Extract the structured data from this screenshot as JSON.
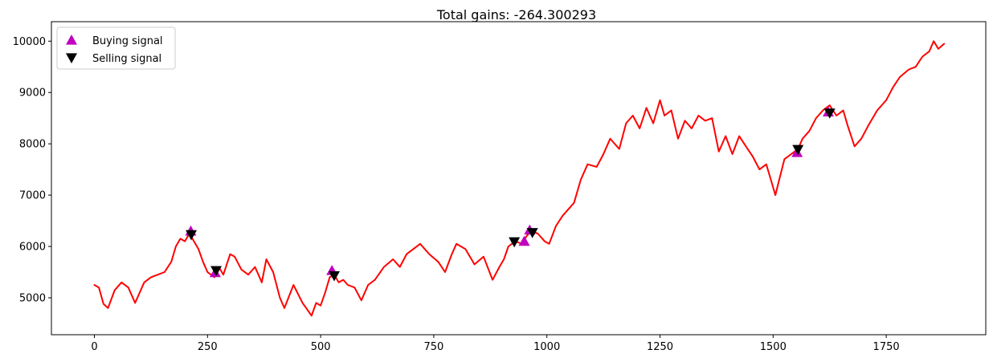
{
  "chart_data": {
    "type": "line",
    "title": "Total gains: -264.300293",
    "xlabel": "",
    "ylabel": "",
    "xlim": [
      -95,
      1970
    ],
    "ylim": [
      4280,
      10380
    ],
    "x_ticks": [
      0,
      250,
      500,
      750,
      1000,
      1250,
      1500,
      1750
    ],
    "y_ticks": [
      5000,
      6000,
      7000,
      8000,
      9000,
      10000
    ],
    "grid": false,
    "legend_position": "upper-left",
    "colors": {
      "line": "#ff0000",
      "buy": "#bf00bf",
      "sell": "#000000"
    },
    "series": [
      {
        "kind": "line",
        "x": [
          0,
          10,
          20,
          30,
          45,
          60,
          75,
          90,
          100,
          110,
          125,
          140,
          155,
          170,
          180,
          190,
          200,
          210,
          220,
          230,
          240,
          250,
          265,
          275,
          285,
          300,
          310,
          325,
          340,
          355,
          370,
          380,
          395,
          410,
          420,
          440,
          460,
          480,
          490,
          500,
          510,
          520,
          530,
          540,
          550,
          560,
          575,
          590,
          605,
          620,
          640,
          660,
          675,
          690,
          705,
          720,
          740,
          760,
          775,
          790,
          800,
          820,
          840,
          860,
          880,
          895,
          905,
          915,
          930,
          945,
          955,
          965,
          980,
          995,
          1005,
          1020,
          1035,
          1050,
          1060,
          1075,
          1090,
          1110,
          1125,
          1140,
          1160,
          1175,
          1190,
          1205,
          1220,
          1235,
          1250,
          1260,
          1275,
          1290,
          1305,
          1320,
          1335,
          1350,
          1365,
          1380,
          1395,
          1410,
          1425,
          1440,
          1455,
          1470,
          1485,
          1495,
          1505,
          1515,
          1525,
          1540,
          1555,
          1565,
          1580,
          1595,
          1610,
          1625,
          1640,
          1655,
          1665,
          1680,
          1695,
          1710,
          1730,
          1750,
          1765,
          1780,
          1800,
          1815,
          1830,
          1845,
          1855,
          1865,
          1878
        ],
        "y": [
          5250,
          5200,
          4880,
          4800,
          5150,
          5300,
          5200,
          4900,
          5100,
          5300,
          5400,
          5450,
          5500,
          5700,
          6000,
          6150,
          6100,
          6250,
          6100,
          5950,
          5700,
          5500,
          5400,
          5600,
          5450,
          5850,
          5800,
          5550,
          5450,
          5600,
          5300,
          5750,
          5500,
          5000,
          4800,
          5250,
          4900,
          4650,
          4900,
          4850,
          5100,
          5400,
          5450,
          5300,
          5350,
          5250,
          5200,
          4950,
          5250,
          5350,
          5600,
          5750,
          5600,
          5850,
          5950,
          6050,
          5850,
          5700,
          5500,
          5850,
          6050,
          5950,
          5650,
          5800,
          5350,
          5600,
          5750,
          6000,
          6100,
          6050,
          6200,
          6300,
          6250,
          6100,
          6050,
          6400,
          6600,
          6750,
          6850,
          7300,
          7600,
          7550,
          7800,
          8100,
          7900,
          8400,
          8550,
          8300,
          8700,
          8400,
          8850,
          8550,
          8650,
          8100,
          8450,
          8300,
          8550,
          8450,
          8500,
          7850,
          8150,
          7800,
          8150,
          7950,
          7750,
          7500,
          7600,
          7300,
          7000,
          7350,
          7700,
          7800,
          7900,
          8100,
          8250,
          8500,
          8650,
          8750,
          8550,
          8650,
          8350,
          7950,
          8100,
          8350,
          8650,
          8850,
          9100,
          9300,
          9450,
          9500,
          9700,
          9800,
          10000,
          9850,
          9950
        ]
      },
      {
        "kind": "marker",
        "name": "Buying signal",
        "marker": "triangle-up",
        "x": [
          213,
          267,
          525,
          950,
          962,
          1553,
          1622
        ],
        "y": [
          6300,
          5490,
          5530,
          6100,
          6320,
          7830,
          8620
        ]
      },
      {
        "kind": "marker",
        "name": "Selling signal",
        "marker": "triangle-down",
        "x": [
          214,
          269,
          530,
          928,
          968,
          1555,
          1625
        ],
        "y": [
          6230,
          5530,
          5430,
          6090,
          6270,
          7890,
          8600
        ]
      }
    ]
  }
}
